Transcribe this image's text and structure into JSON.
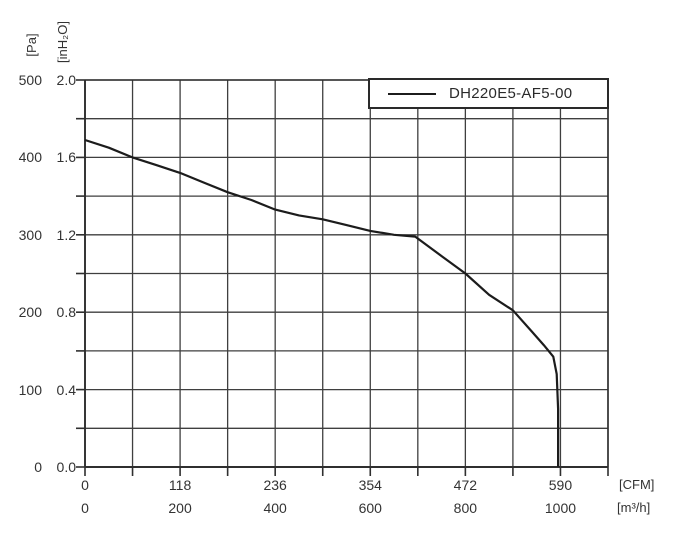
{
  "chart_data": {
    "type": "line",
    "title": "",
    "grid": true,
    "legend": {
      "label": "DH220E5-AF5-00",
      "position": "top-right"
    },
    "x_axis": {
      "primary_unit": "[CFM]",
      "secondary_unit": "[m³/h]",
      "cfm_tick_labels": [
        "0",
        "118",
        "236",
        "354",
        "472",
        "590"
      ],
      "m3h_tick_labels": [
        "0",
        "200",
        "400",
        "600",
        "800",
        "1000"
      ],
      "m3h_tick_positions": [
        0,
        200,
        400,
        600,
        800,
        1000
      ],
      "range_m3h": [
        0,
        1100
      ],
      "grid_step_m3h": 100
    },
    "y_axis": {
      "primary_unit": "[Pa]",
      "secondary_unit": "[inH₂O]",
      "pa_tick_labels": [
        "500",
        "400",
        "300",
        "200",
        "100",
        "0"
      ],
      "inh2o_tick_labels": [
        "2.0",
        "1.6",
        "1.2",
        "0.8",
        "0.4",
        "0.0"
      ],
      "inh2o_tick_positions": [
        2.0,
        1.6,
        1.2,
        0.8,
        0.4,
        0.0
      ],
      "range_inh2o": [
        0,
        2.0
      ],
      "grid_step_inh2o": 0.2
    },
    "series": [
      {
        "name": "DH220E5-AF5-00",
        "x_m3h": [
          0,
          50,
          100,
          150,
          200,
          250,
          300,
          350,
          400,
          450,
          500,
          550,
          600,
          650,
          695,
          750,
          800,
          850,
          900,
          940,
          965,
          985,
          992,
          995,
          995
        ],
        "y_inh2o": [
          1.69,
          1.65,
          1.6,
          1.56,
          1.52,
          1.47,
          1.42,
          1.38,
          1.33,
          1.3,
          1.28,
          1.25,
          1.22,
          1.2,
          1.19,
          1.09,
          1.0,
          0.89,
          0.81,
          0.7,
          0.63,
          0.57,
          0.48,
          0.3,
          0.0
        ]
      }
    ],
    "colors": {
      "curve": "#1c1c1c",
      "grid": "#3f3f3f",
      "border": "#2f2f2f",
      "text": "#333333",
      "background": "#ffffff"
    }
  }
}
